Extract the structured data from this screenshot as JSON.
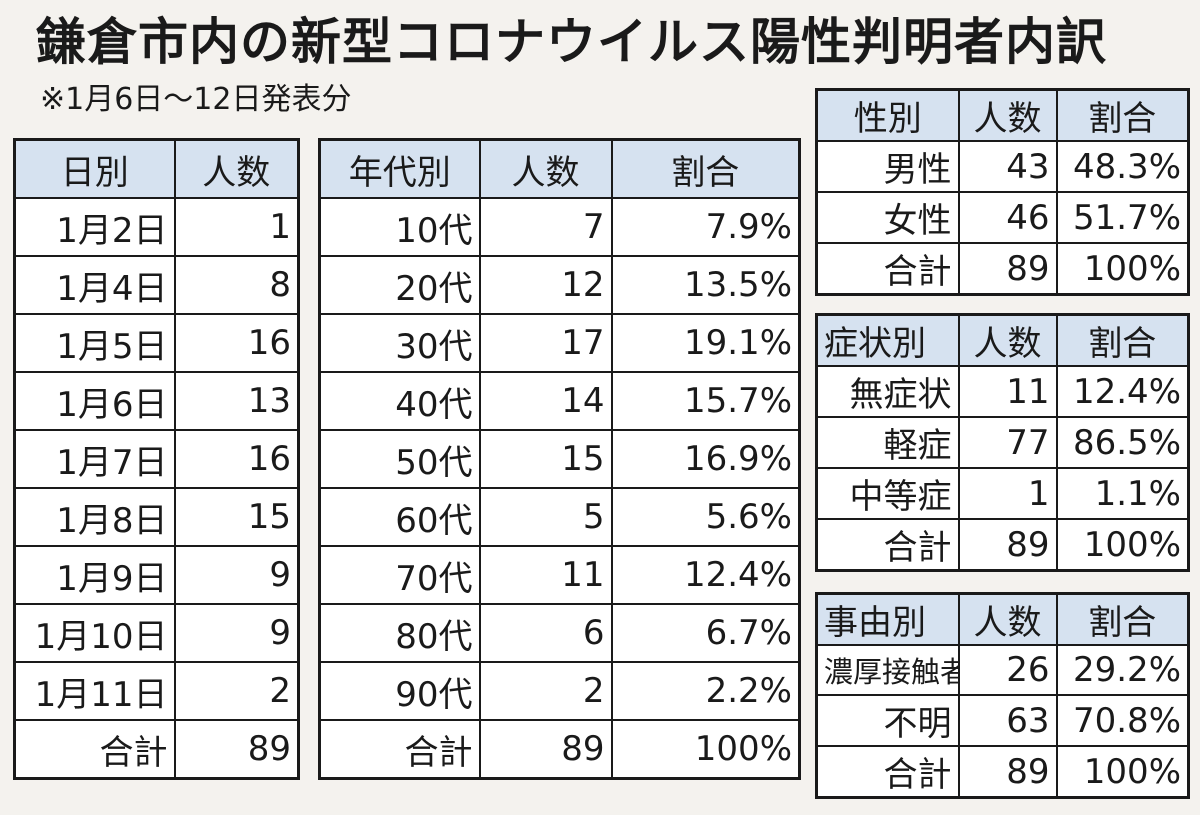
{
  "title": "鎌倉市内の新型コロナウイルス陽性判明者内訳",
  "subtitle": "※1月6日〜12日発表分",
  "by_date": {
    "headers": [
      "日別",
      "人数"
    ],
    "rows": [
      [
        "1月2日",
        "1"
      ],
      [
        "1月4日",
        "8"
      ],
      [
        "1月5日",
        "16"
      ],
      [
        "1月6日",
        "13"
      ],
      [
        "1月7日",
        "16"
      ],
      [
        "1月8日",
        "15"
      ],
      [
        "1月9日",
        "9"
      ],
      [
        "1月10日",
        "9"
      ],
      [
        "1月11日",
        "2"
      ]
    ],
    "total": [
      "合計",
      "89"
    ]
  },
  "by_age": {
    "headers": [
      "年代別",
      "人数",
      "割合"
    ],
    "rows": [
      [
        "10代",
        "7",
        "7.9%"
      ],
      [
        "20代",
        "12",
        "13.5%"
      ],
      [
        "30代",
        "17",
        "19.1%"
      ],
      [
        "40代",
        "14",
        "15.7%"
      ],
      [
        "50代",
        "15",
        "16.9%"
      ],
      [
        "60代",
        "5",
        "5.6%"
      ],
      [
        "70代",
        "11",
        "12.4%"
      ],
      [
        "80代",
        "6",
        "6.7%"
      ],
      [
        "90代",
        "2",
        "2.2%"
      ]
    ],
    "total": [
      "合計",
      "89",
      "100%"
    ]
  },
  "by_sex": {
    "headers": [
      "性別",
      "人数",
      "割合"
    ],
    "rows": [
      [
        "男性",
        "43",
        "48.3%"
      ],
      [
        "女性",
        "46",
        "51.7%"
      ]
    ],
    "total": [
      "合計",
      "89",
      "100%"
    ]
  },
  "by_symptom": {
    "headers": [
      "症状別",
      "人数",
      "割合"
    ],
    "rows": [
      [
        "無症状",
        "11",
        "12.4%"
      ],
      [
        "軽症",
        "77",
        "86.5%"
      ],
      [
        "中等症",
        "1",
        "1.1%"
      ]
    ],
    "total": [
      "合計",
      "89",
      "100%"
    ]
  },
  "by_reason": {
    "headers": [
      "事由別",
      "人数",
      "割合"
    ],
    "rows": [
      [
        "濃厚接触者",
        "26",
        "29.2%"
      ],
      [
        "不明",
        "63",
        "70.8%"
      ]
    ],
    "total": [
      "合計",
      "89",
      "100%"
    ]
  },
  "colors": {
    "header_bg": "#d6e2f0",
    "cell_bg": "#ffffff",
    "page_bg": "#f4f2ee",
    "border": "#1a1a1a"
  }
}
